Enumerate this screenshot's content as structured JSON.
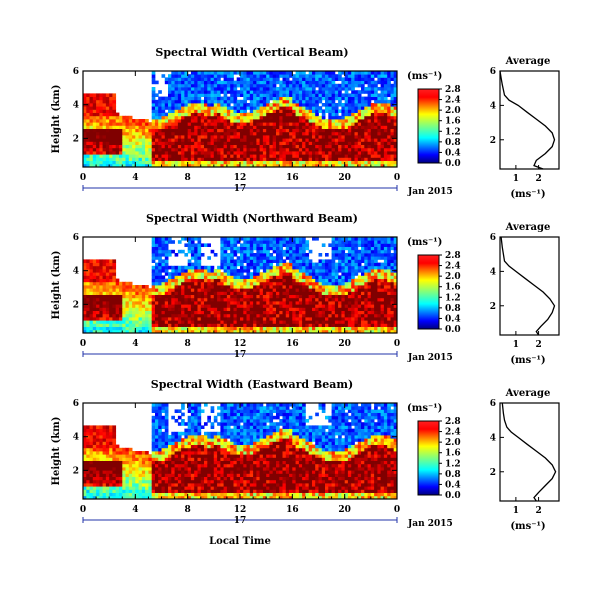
{
  "chart_data": [
    {
      "type": "heatmap",
      "title": "Spectral Width (Vertical Beam)",
      "ylabel": "Height (km)",
      "xticks": [
        "0",
        "4",
        "8",
        "12",
        "16",
        "20",
        "0"
      ],
      "yticks": [
        "2",
        "4",
        "6"
      ],
      "xlim": [
        0,
        24
      ],
      "ylim": [
        0.3,
        6
      ],
      "date_tick": "17",
      "date_label": "Jan 2015",
      "colorbar": {
        "unit": "(ms⁻¹)",
        "ticks": [
          "0.0",
          "0.4",
          "0.8",
          "1.2",
          "1.6",
          "2.0",
          "2.4",
          "2.8"
        ],
        "range": [
          0,
          2.8
        ]
      },
      "average": {
        "title": "Average",
        "xlabel": "(ms⁻¹)",
        "xticks": [
          "1",
          "2"
        ],
        "yticks": [
          "2",
          "4",
          "6"
        ],
        "profile": [
          [
            0.3,
            2.2
          ],
          [
            0.5,
            1.8
          ],
          [
            0.8,
            1.9
          ],
          [
            1.2,
            2.3
          ],
          [
            1.6,
            2.6
          ],
          [
            2.0,
            2.7
          ],
          [
            2.4,
            2.6
          ],
          [
            2.8,
            2.3
          ],
          [
            3.2,
            1.9
          ],
          [
            3.6,
            1.5
          ],
          [
            4.0,
            1.1
          ],
          [
            4.3,
            0.7
          ],
          [
            4.6,
            0.5
          ],
          [
            4.9,
            0.45
          ],
          [
            5.2,
            0.4
          ],
          [
            5.6,
            0.35
          ],
          [
            6.0,
            0.3
          ]
        ]
      }
    },
    {
      "type": "heatmap",
      "title": "Spectral Width (Northward Beam)",
      "ylabel": "Height (km)",
      "xticks": [
        "0",
        "4",
        "8",
        "12",
        "16",
        "20",
        "0"
      ],
      "yticks": [
        "2",
        "4",
        "6"
      ],
      "xlim": [
        0,
        24
      ],
      "ylim": [
        0.3,
        6
      ],
      "date_tick": "17",
      "date_label": "Jan 2015",
      "colorbar": {
        "unit": "(ms⁻¹)",
        "ticks": [
          "0.0",
          "0.4",
          "0.8",
          "1.2",
          "1.6",
          "2.0",
          "2.4",
          "2.8"
        ],
        "range": [
          0,
          2.8
        ]
      },
      "average": {
        "title": "Average",
        "xlabel": "(ms⁻¹)",
        "xticks": [
          "1",
          "2"
        ],
        "yticks": [
          "2",
          "4",
          "6"
        ],
        "profile": [
          [
            0.3,
            2.0
          ],
          [
            0.5,
            1.9
          ],
          [
            0.8,
            2.1
          ],
          [
            1.2,
            2.4
          ],
          [
            1.6,
            2.6
          ],
          [
            2.0,
            2.7
          ],
          [
            2.4,
            2.5
          ],
          [
            2.8,
            2.2
          ],
          [
            3.2,
            1.8
          ],
          [
            3.6,
            1.4
          ],
          [
            4.0,
            1.0
          ],
          [
            4.3,
            0.7
          ],
          [
            4.6,
            0.5
          ],
          [
            5.0,
            0.45
          ],
          [
            5.4,
            0.4
          ],
          [
            6.0,
            0.35
          ]
        ]
      }
    },
    {
      "type": "heatmap",
      "title": "Spectral Width (Eastward Beam)",
      "ylabel": "Height (km)",
      "xlabel": "Local Time",
      "xticks": [
        "0",
        "4",
        "8",
        "12",
        "16",
        "20",
        "0"
      ],
      "yticks": [
        "2",
        "4",
        "6"
      ],
      "xlim": [
        0,
        24
      ],
      "ylim": [
        0.3,
        6
      ],
      "date_tick": "17",
      "date_label": "Jan 2015",
      "colorbar": {
        "unit": "(ms⁻¹)",
        "ticks": [
          "0.0",
          "0.4",
          "0.8",
          "1.2",
          "1.6",
          "2.0",
          "2.4",
          "2.8"
        ],
        "range": [
          0,
          2.8
        ]
      },
      "average": {
        "title": "Average",
        "xlabel": "(ms⁻¹)",
        "xticks": [
          "1",
          "2"
        ],
        "yticks": [
          "2",
          "4",
          "6"
        ],
        "profile": [
          [
            0.3,
            1.9
          ],
          [
            0.5,
            1.8
          ],
          [
            0.8,
            2.0
          ],
          [
            1.2,
            2.3
          ],
          [
            1.6,
            2.6
          ],
          [
            2.0,
            2.75
          ],
          [
            2.4,
            2.6
          ],
          [
            2.8,
            2.3
          ],
          [
            3.2,
            1.9
          ],
          [
            3.6,
            1.5
          ],
          [
            4.0,
            1.1
          ],
          [
            4.3,
            0.8
          ],
          [
            4.6,
            0.6
          ],
          [
            5.0,
            0.5
          ],
          [
            5.4,
            0.45
          ],
          [
            6.0,
            0.4
          ]
        ]
      }
    }
  ]
}
